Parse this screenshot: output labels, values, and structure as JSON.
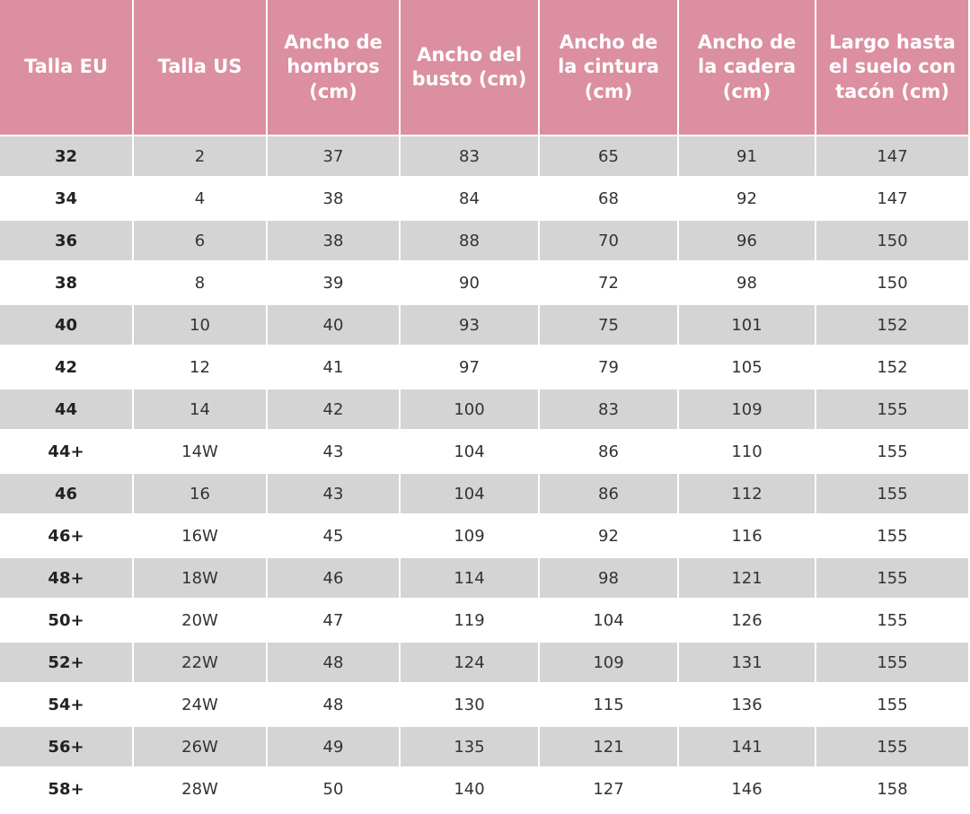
{
  "table": {
    "header": [
      "Talla EU",
      "Talla US",
      "Ancho de hombros (cm)",
      "Ancho del busto (cm)",
      "Ancho de la cintura (cm)",
      "Ancho de la cadera (cm)",
      "Largo hasta el suelo con tacón (cm)"
    ],
    "rows": [
      [
        32,
        2,
        37,
        83,
        65,
        91,
        147
      ],
      [
        34,
        4,
        38,
        84,
        68,
        92,
        147
      ],
      [
        36,
        6,
        38,
        88,
        70,
        96,
        150
      ],
      [
        38,
        8,
        39,
        90,
        72,
        98,
        150
      ],
      [
        40,
        10,
        40,
        93,
        75,
        101,
        152
      ],
      [
        42,
        12,
        41,
        97,
        79,
        105,
        152
      ],
      [
        44,
        14,
        42,
        100,
        83,
        109,
        155
      ],
      [
        "44+",
        "14W",
        43,
        104,
        86,
        110,
        155
      ],
      [
        46,
        16,
        43,
        104,
        86,
        112,
        155
      ],
      [
        "46+",
        "16W",
        45,
        109,
        92,
        116,
        155
      ],
      [
        "48+",
        "18W",
        46,
        114,
        98,
        121,
        155
      ],
      [
        "50+",
        "20W",
        47,
        119,
        104,
        126,
        155
      ],
      [
        "52+",
        "22W",
        48,
        124,
        109,
        131,
        155
      ],
      [
        "54+",
        "24W",
        48,
        130,
        115,
        136,
        155
      ],
      [
        "56+",
        "26W",
        49,
        135,
        121,
        141,
        155
      ],
      [
        "58+",
        "28W",
        50,
        140,
        127,
        146,
        158
      ]
    ]
  }
}
